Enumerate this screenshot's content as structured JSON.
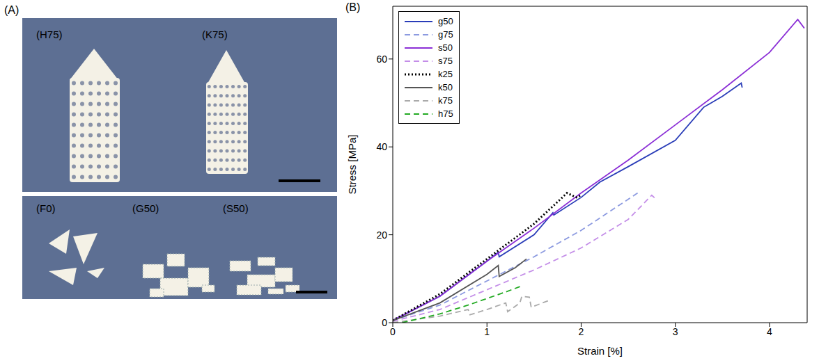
{
  "figure": {
    "panel_labels": [
      "(A)",
      "(B)"
    ],
    "photo_labels": [
      "(H75)",
      "(K75)",
      "(F0)",
      "(G50)",
      "(S50)"
    ]
  },
  "chart_data": {
    "type": "line",
    "x_label": "Strain [%]",
    "y_label": "Stress [MPa]",
    "xlim": [
      0,
      4.4
    ],
    "ylim": [
      0,
      72
    ],
    "xticks": [
      0,
      1,
      2,
      3,
      4
    ],
    "yticks": [
      0,
      20,
      40,
      60
    ],
    "legend": "upper left",
    "series": [
      {
        "name": "g50",
        "color": "#2a3db8",
        "line_style": "solid",
        "x": [
          0,
          0.5,
          1,
          1.12,
          1.13,
          1.5,
          1.7,
          1.71,
          2,
          2.2,
          2.5,
          3,
          3.3,
          3.5,
          3.7,
          3.71
        ],
        "values": [
          0.5,
          6,
          14,
          16,
          15,
          20,
          25,
          24.5,
          28.5,
          32,
          35.5,
          41.5,
          49,
          51.5,
          54.5,
          53.5
        ]
      },
      {
        "name": "g75",
        "color": "#8c9ae0",
        "line_style": "dashed",
        "x": [
          0,
          0.5,
          1,
          1.5,
          2,
          2.6
        ],
        "values": [
          0.5,
          4,
          9.5,
          15,
          21,
          29.5
        ]
      },
      {
        "name": "s50",
        "color": "#8b2fd6",
        "line_style": "solid",
        "x": [
          0,
          0.5,
          1,
          1.5,
          2,
          2.5,
          3,
          3.5,
          4,
          4.3,
          4.37
        ],
        "values": [
          0.5,
          6,
          14,
          21.5,
          29.5,
          37,
          45,
          53,
          61.5,
          69,
          67
        ]
      },
      {
        "name": "s75",
        "color": "#c48ee8",
        "line_style": "dashed",
        "x": [
          0,
          0.5,
          1,
          1.5,
          2,
          2.5,
          2.75,
          2.8
        ],
        "values": [
          0.3,
          3,
          7.5,
          12,
          17,
          23.5,
          29,
          28
        ]
      },
      {
        "name": "k25",
        "color": "#000000",
        "line_style": "dotted",
        "x": [
          0,
          0.5,
          1,
          1.5,
          1.85,
          1.9,
          1.95,
          2
        ],
        "values": [
          0.5,
          6.5,
          14.5,
          22.5,
          29.5,
          29,
          28.5,
          29
        ]
      },
      {
        "name": "k50",
        "color": "#555555",
        "line_style": "solid",
        "x": [
          0,
          0.5,
          1,
          1.12,
          1.13,
          1.3,
          1.42
        ],
        "values": [
          0.5,
          4.5,
          11,
          13,
          10.5,
          12.5,
          14.5
        ]
      },
      {
        "name": "k75",
        "color": "#aaaaaa",
        "line_style": "dashed",
        "x": [
          0,
          0.5,
          0.8,
          0.82,
          1,
          1.2,
          1.22,
          1.35,
          1.37,
          1.45,
          1.47,
          1.65
        ],
        "values": [
          0,
          1.5,
          3,
          1.8,
          3,
          4.5,
          2.5,
          4.5,
          6,
          5.8,
          3.5,
          5
        ]
      },
      {
        "name": "h75",
        "color": "#22aa22",
        "line_style": "dashed",
        "x": [
          0.1,
          0.5,
          0.8,
          1,
          1.2,
          1.35
        ],
        "values": [
          0,
          2,
          4,
          5.5,
          7,
          8.2
        ]
      }
    ]
  }
}
